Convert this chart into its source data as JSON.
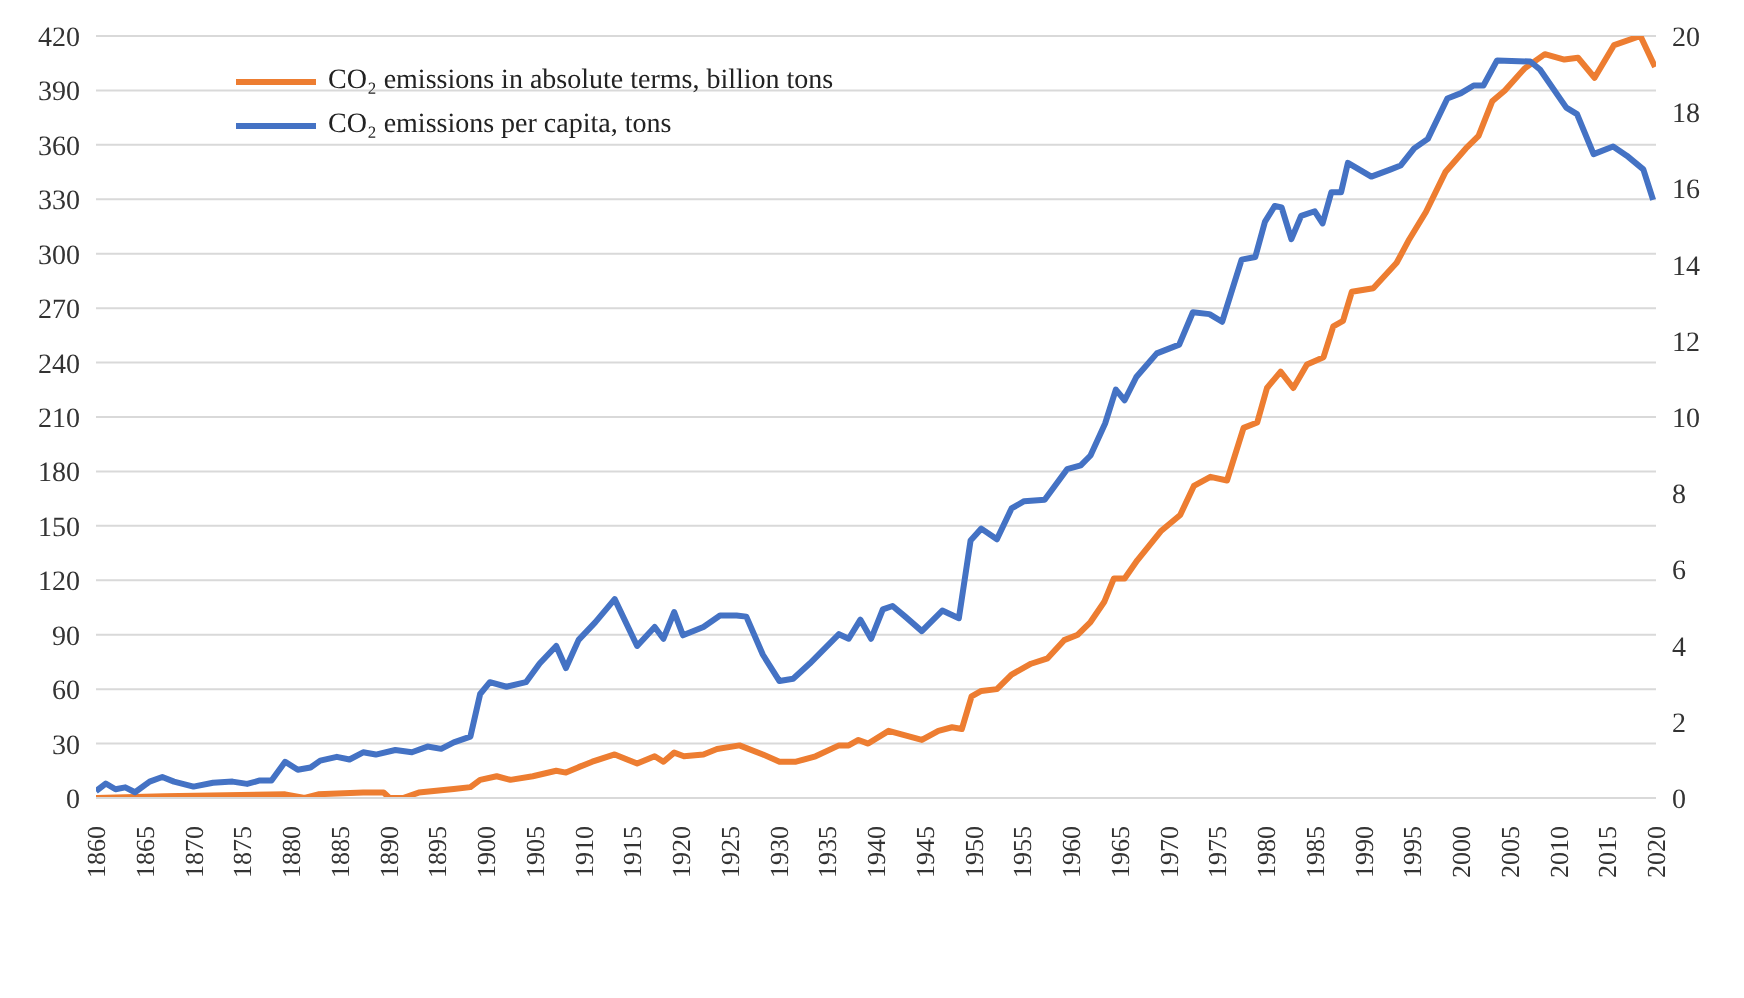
{
  "chart_data": {
    "type": "line",
    "legend": "top left",
    "grid": "y",
    "line_style": "solid",
    "marker": "none",
    "xlim": [
      1860,
      2020
    ],
    "xticks": [
      1860,
      1865,
      1870,
      1875,
      1880,
      1885,
      1890,
      1895,
      1900,
      1905,
      1910,
      1915,
      1920,
      1925,
      1930,
      1935,
      1940,
      1945,
      1950,
      1955,
      1960,
      1965,
      1970,
      1975,
      1980,
      1985,
      1990,
      1995,
      2000,
      2005,
      2010,
      2015,
      2020
    ],
    "ylim": [
      0,
      420
    ],
    "yticks": [
      0,
      30,
      60,
      90,
      120,
      150,
      180,
      210,
      240,
      270,
      300,
      330,
      360,
      390,
      420
    ],
    "y2lim": [
      0,
      20
    ],
    "y2ticks": [
      0,
      2,
      4,
      6,
      8,
      10,
      12,
      14,
      16,
      18,
      20
    ],
    "series": [
      {
        "name": "CO₂ emissions in absolute terms, billion tons",
        "color": "#ed7d31",
        "x": [
          1860,
          1867,
          1879.4,
          1881.4,
          1882.8,
          1887.4,
          1889.5,
          1890.1,
          1891.5,
          1893.1,
          1896.7,
          1898.4,
          1899.4,
          1901.1,
          1902.5,
          1904.8,
          1907.2,
          1908.2,
          1909.5,
          1910.9,
          1913.2,
          1915.5,
          1917.3,
          1918.2,
          1919.3,
          1920.3,
          1922.3,
          1923.7,
          1926,
          1928.4,
          1930.1,
          1931.8,
          1933.8,
          1936.2,
          1937.2,
          1938.2,
          1939.2,
          1941.3,
          1944.7,
          1946.4,
          1947.8,
          1948.8,
          1949.8,
          1950.8,
          1952.4,
          1953.9,
          1955.9,
          1957.6,
          1959.3,
          1960.7,
          1962,
          1963.4,
          1964.4,
          1965.5,
          1966.8,
          1969.2,
          1971.2,
          1972.6,
          1974.3,
          1976,
          1977.7,
          1979.1,
          1980.1,
          1981.5,
          1982.8,
          1984.2,
          1985.9,
          1986.9,
          1987.9,
          1988.8,
          1991,
          1993.4,
          1994.7,
          1996.4,
          1998.4,
          2000.5,
          2001.8,
          2003.2,
          2004.5,
          2006.5,
          2008.6,
          2010.6,
          2012,
          2013.7,
          2015.7,
          2018.4,
          2019.9
        ],
        "values": [
          0,
          1,
          2,
          0,
          2,
          3,
          3,
          0,
          0,
          3,
          5,
          6,
          10,
          12,
          10,
          12,
          15,
          14,
          17,
          20,
          24,
          19,
          23,
          20,
          25,
          23,
          24,
          27,
          29,
          24,
          20,
          20,
          23,
          29,
          29,
          32,
          30,
          37,
          32,
          37,
          39,
          38,
          56,
          59,
          60,
          68,
          74,
          77,
          87,
          90,
          97,
          108,
          121,
          121,
          131,
          147,
          156,
          172,
          177,
          175,
          204,
          207,
          226,
          235,
          226,
          239,
          243,
          260,
          263,
          279,
          281,
          295,
          308,
          323,
          345,
          358,
          365,
          384,
          390,
          402,
          410,
          407,
          408,
          397,
          415,
          420,
          403
        ]
      },
      {
        "name": "CO₂ emissions per capita, tons",
        "color": "#4472c4",
        "axis": "y2",
        "x": [
          1860,
          1861,
          1862,
          1863,
          1864,
          1865.5,
          1866.8,
          1868,
          1870,
          1872,
          1874,
          1875.5,
          1876.8,
          1878,
          1879.4,
          1880.7,
          1882,
          1883,
          1884.7,
          1886,
          1887.4,
          1888.7,
          1890.7,
          1892.4,
          1894,
          1895.4,
          1896.7,
          1898.4,
          1899.4,
          1900.4,
          1902.1,
          1904.1,
          1905.5,
          1907.2,
          1908.2,
          1909.5,
          1911.2,
          1913.2,
          1915.5,
          1917.3,
          1918.2,
          1919.3,
          1920.2,
          1922.3,
          1924,
          1925.7,
          1926.7,
          1928.4,
          1930.1,
          1931.5,
          1933.2,
          1936.2,
          1937.2,
          1938.4,
          1939.5,
          1940.7,
          1941.7,
          1943,
          1944.7,
          1946.8,
          1948.5,
          1949.7,
          1950.8,
          1952.4,
          1953.9,
          1955.2,
          1957.3,
          1959.6,
          1961,
          1962,
          1963.5,
          1964.6,
          1965.5,
          1966.7,
          1968.8,
          1971.1,
          1972.5,
          1974.2,
          1975.5,
          1977.5,
          1978.9,
          1979.9,
          1980.9,
          1981.6,
          1982.6,
          1983.6,
          1985,
          1985.8,
          1986.7,
          1987.7,
          1988.4,
          1990.8,
          1992.8,
          1993.8,
          1995.2,
          1996.6,
          1998.6,
          2000,
          2001.3,
          2002.3,
          2003.7,
          2007.1,
          2008.1,
          2010.8,
          2011.9,
          2013.6,
          2015.6,
          2017,
          2018.7,
          2019.7
        ],
        "values": [
          0.18,
          0.38,
          0.23,
          0.28,
          0.15,
          0.43,
          0.55,
          0.43,
          0.3,
          0.4,
          0.43,
          0.37,
          0.46,
          0.46,
          0.95,
          0.74,
          0.8,
          0.98,
          1.08,
          1.01,
          1.2,
          1.14,
          1.26,
          1.2,
          1.35,
          1.29,
          1.46,
          1.61,
          2.73,
          3.04,
          2.92,
          3.04,
          3.53,
          3.99,
          3.41,
          4.15,
          4.61,
          5.22,
          3.99,
          4.49,
          4.18,
          4.88,
          4.27,
          4.49,
          4.79,
          4.79,
          4.76,
          3.76,
          3.07,
          3.13,
          3.53,
          4.3,
          4.18,
          4.68,
          4.18,
          4.95,
          5.04,
          4.76,
          4.38,
          4.92,
          4.72,
          6.76,
          7.07,
          6.79,
          7.6,
          7.79,
          7.83,
          8.63,
          8.73,
          8.99,
          9.83,
          10.72,
          10.44,
          11.05,
          11.67,
          11.9,
          12.75,
          12.7,
          12.5,
          14.13,
          14.2,
          15.13,
          15.54,
          15.5,
          14.67,
          15.28,
          15.4,
          15.08,
          15.9,
          15.9,
          16.67,
          16.31,
          16.5,
          16.6,
          17.05,
          17.3,
          18.36,
          18.5,
          18.7,
          18.7,
          19.36,
          19.33,
          19.12,
          18.12,
          17.95,
          16.9,
          17.1,
          16.86,
          16.5,
          15.7
        ]
      }
    ]
  }
}
